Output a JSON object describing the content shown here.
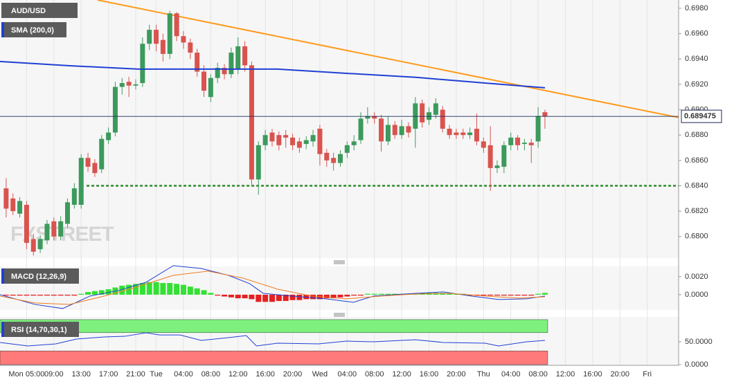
{
  "chart_data": [
    {
      "type": "candlestick",
      "title": "AUD/USD",
      "watermark": "FXSTREET",
      "xlim": [
        -3.9,
        95.6
      ],
      "ylim": [
        0.6783,
        0.69865
      ],
      "xticks": [
        {
          "value": 0,
          "label": "Mon 05:00"
        },
        {
          "value": 4,
          "label": "09:00"
        },
        {
          "value": 8,
          "label": "13:00"
        },
        {
          "value": 12,
          "label": "17:00"
        },
        {
          "value": 16,
          "label": "21:00"
        },
        {
          "value": 19,
          "label": "Tue"
        },
        {
          "value": 23,
          "label": "04:00"
        },
        {
          "value": 27,
          "label": "08:00"
        },
        {
          "value": 31,
          "label": "12:00"
        },
        {
          "value": 35,
          "label": "16:00"
        },
        {
          "value": 39,
          "label": "20:00"
        },
        {
          "value": 43,
          "label": "Wed"
        },
        {
          "value": 47,
          "label": "04:00"
        },
        {
          "value": 51,
          "label": "08:00"
        },
        {
          "value": 55,
          "label": "12:00"
        },
        {
          "value": 59,
          "label": "16:00"
        },
        {
          "value": 63,
          "label": "20:00"
        },
        {
          "value": 67,
          "label": "Thu"
        },
        {
          "value": 71,
          "label": "04:00"
        },
        {
          "value": 75,
          "label": "08:00"
        },
        {
          "value": 79,
          "label": "12:00"
        },
        {
          "value": 83,
          "label": "16:00"
        },
        {
          "value": 87,
          "label": "20:00"
        },
        {
          "value": 91,
          "label": "Fri"
        }
      ],
      "yticks": [
        {
          "value": 0.698,
          "label": "0.6980"
        },
        {
          "value": 0.696,
          "label": "0.6960"
        },
        {
          "value": 0.694,
          "label": "0.6940"
        },
        {
          "value": 0.692,
          "label": "0.6920"
        },
        {
          "value": 0.69,
          "label": "0.6900"
        },
        {
          "value": 0.688,
          "label": "0.6880"
        },
        {
          "value": 0.686,
          "label": "0.6860"
        },
        {
          "value": 0.684,
          "label": "0.6840"
        },
        {
          "value": 0.682,
          "label": "0.6820"
        },
        {
          "value": 0.68,
          "label": "0.6800"
        }
      ],
      "up_color": "#3c9a5c",
      "down_color": "#d9534f",
      "x": [
        -3,
        -2,
        -1,
        0,
        1,
        2,
        3,
        4,
        5,
        6,
        7,
        8,
        9,
        10,
        11,
        12,
        13,
        14,
        15,
        16,
        17,
        18,
        19,
        20,
        21,
        22,
        23,
        24,
        25,
        26,
        27,
        28,
        29,
        30,
        31,
        32,
        33,
        34,
        35,
        36,
        37,
        38,
        39,
        40,
        41,
        42,
        43,
        44,
        45,
        46,
        47,
        48,
        49,
        50,
        51,
        52,
        53,
        54,
        55,
        56,
        57,
        58,
        59,
        60,
        61,
        62,
        63,
        64,
        65,
        66,
        67,
        68,
        69,
        70,
        71,
        72,
        73,
        74,
        75,
        76
      ],
      "open": [
        0.6838,
        0.683,
        0.6818,
        0.6825,
        0.6798,
        0.679,
        0.6797,
        0.6812,
        0.68,
        0.681,
        0.6825,
        0.6825,
        0.6862,
        0.6858,
        0.6853,
        0.6876,
        0.6882,
        0.6918,
        0.6922,
        0.6919,
        0.6921,
        0.6952,
        0.6963,
        0.6955,
        0.6944,
        0.6976,
        0.6958,
        0.6953,
        0.6945,
        0.693,
        0.691,
        0.6925,
        0.6933,
        0.6928,
        0.6932,
        0.695,
        0.6935,
        0.6845,
        0.6872,
        0.6882,
        0.688,
        0.688,
        0.6878,
        0.6875,
        0.6873,
        0.6875,
        0.6885,
        0.6866,
        0.6862,
        0.6858,
        0.6866,
        0.6872,
        0.6876,
        0.6893,
        0.6895,
        0.6893,
        0.6875,
        0.6888,
        0.688,
        0.6887,
        0.6885,
        0.6905,
        0.6892,
        0.6896,
        0.69,
        0.6885,
        0.6882,
        0.6882,
        0.688,
        0.6885,
        0.6875,
        0.6872,
        0.6854,
        0.6855,
        0.6872,
        0.6878,
        0.6873,
        0.6874,
        0.6875,
        0.6898
      ],
      "high": [
        0.6846,
        0.6834,
        0.6831,
        0.6828,
        0.6802,
        0.6801,
        0.6813,
        0.6815,
        0.6816,
        0.683,
        0.6842,
        0.6865,
        0.6866,
        0.6861,
        0.688,
        0.6886,
        0.6922,
        0.6925,
        0.6926,
        0.6924,
        0.6957,
        0.6967,
        0.6967,
        0.696,
        0.6978,
        0.6977,
        0.6962,
        0.6956,
        0.6948,
        0.6935,
        0.6928,
        0.6937,
        0.6936,
        0.6949,
        0.6957,
        0.6954,
        0.6938,
        0.6875,
        0.6884,
        0.6885,
        0.6883,
        0.6884,
        0.6881,
        0.6878,
        0.6879,
        0.6884,
        0.6888,
        0.6869,
        0.6866,
        0.6868,
        0.6875,
        0.688,
        0.6898,
        0.6902,
        0.6898,
        0.6896,
        0.6895,
        0.6891,
        0.6892,
        0.689,
        0.691,
        0.6908,
        0.6902,
        0.6909,
        0.6903,
        0.6888,
        0.6885,
        0.6885,
        0.6886,
        0.6897,
        0.6878,
        0.6887,
        0.686,
        0.6875,
        0.6882,
        0.688,
        0.6877,
        0.6877,
        0.6902,
        0.69
      ],
      "low": [
        0.6815,
        0.6817,
        0.6815,
        0.679,
        0.6785,
        0.6787,
        0.6794,
        0.6797,
        0.6797,
        0.6807,
        0.6822,
        0.6822,
        0.6851,
        0.6847,
        0.685,
        0.6873,
        0.6879,
        0.6912,
        0.691,
        0.6916,
        0.6918,
        0.6947,
        0.6946,
        0.6938,
        0.694,
        0.6954,
        0.6948,
        0.694,
        0.6926,
        0.691,
        0.6906,
        0.6921,
        0.6924,
        0.6925,
        0.6928,
        0.693,
        0.684,
        0.6833,
        0.6868,
        0.6871,
        0.6868,
        0.687,
        0.6868,
        0.6866,
        0.6869,
        0.6871,
        0.6856,
        0.6855,
        0.6852,
        0.6855,
        0.6862,
        0.6868,
        0.6873,
        0.6889,
        0.6889,
        0.6867,
        0.6872,
        0.6877,
        0.6877,
        0.6878,
        0.687,
        0.6886,
        0.6888,
        0.6893,
        0.6882,
        0.6877,
        0.6877,
        0.6877,
        0.6877,
        0.6872,
        0.6866,
        0.6836,
        0.685,
        0.685,
        0.6868,
        0.6868,
        0.6868,
        0.6858,
        0.687,
        0.6885
      ],
      "close": [
        0.6822,
        0.682,
        0.6828,
        0.6795,
        0.6788,
        0.6798,
        0.681,
        0.68,
        0.6812,
        0.6827,
        0.6838,
        0.6862,
        0.6855,
        0.685,
        0.6877,
        0.6882,
        0.6918,
        0.6921,
        0.6919,
        0.692,
        0.6952,
        0.6963,
        0.6952,
        0.6944,
        0.6976,
        0.6958,
        0.6953,
        0.6945,
        0.693,
        0.6915,
        0.6925,
        0.6933,
        0.6928,
        0.6945,
        0.695,
        0.6935,
        0.6845,
        0.6872,
        0.688,
        0.6875,
        0.6872,
        0.6878,
        0.6872,
        0.687,
        0.6876,
        0.688,
        0.6865,
        0.686,
        0.6858,
        0.6865,
        0.6872,
        0.6875,
        0.6893,
        0.6895,
        0.6893,
        0.6875,
        0.6888,
        0.688,
        0.6887,
        0.6882,
        0.6905,
        0.689,
        0.6898,
        0.6905,
        0.6885,
        0.688,
        0.688,
        0.688,
        0.6882,
        0.6875,
        0.687,
        0.6854,
        0.6856,
        0.6872,
        0.6878,
        0.6872,
        0.6874,
        0.6872,
        0.6895,
        0.689475
      ],
      "sma": {
        "name": "SMA (200,0)",
        "color": "#1f3fd4",
        "x": [
          -3.9,
          6.3,
          16.4,
          26.6,
          36.8,
          46.9,
          57.1,
          67.2,
          76
        ],
        "values": [
          0.6938,
          0.69347,
          0.6932,
          0.6932,
          0.6932,
          0.69287,
          0.69255,
          0.6921,
          0.69173
        ]
      },
      "lines": [
        {
          "color": "#ff9a1a",
          "dashed": false,
          "x": [
            10.4,
            95.6
          ],
          "values": [
            0.69865,
            0.68938
          ]
        },
        {
          "color": "#2a8a2a",
          "dashed": true,
          "x": [
            8.8,
            95.6
          ],
          "values": [
            0.684,
            0.684
          ]
        }
      ],
      "last_price": {
        "value": 0.689475,
        "label": "0.689475",
        "color": "#1a2a5a"
      }
    },
    {
      "type": "macd",
      "title": "MACD (12,26,9)",
      "ylim": [
        -0.0017,
        0.00315
      ],
      "yticks": [
        {
          "value": 0.002,
          "label": "0.0020"
        },
        {
          "value": 0,
          "label": "0.0000"
        }
      ],
      "up_color": "#33e033",
      "down_color": "#e52020",
      "x": [
        -3,
        -2,
        -1,
        0,
        1,
        2,
        3,
        4,
        5,
        6,
        7,
        8,
        9,
        10,
        11,
        12,
        13,
        14,
        15,
        16,
        17,
        18,
        19,
        20,
        21,
        22,
        23,
        24,
        25,
        26,
        27,
        28,
        29,
        30,
        31,
        32,
        33,
        34,
        35,
        36,
        37,
        38,
        39,
        40,
        41,
        42,
        43,
        44,
        45,
        46,
        47,
        48,
        49,
        50,
        51,
        52,
        53,
        54,
        55,
        56,
        57,
        58,
        59,
        60,
        61,
        62,
        63,
        64,
        65,
        66,
        67,
        68,
        69,
        70,
        71,
        72,
        73,
        74,
        75,
        76
      ],
      "histogram": [
        -0.0001,
        -0.0001,
        -0.0001,
        -0.0001,
        -0.0001,
        -0.0001,
        -0.0001,
        -0.0001,
        -0.0001,
        -0.0001,
        -0.0001,
        0.0001,
        0.0003,
        0.0004,
        0.0005,
        0.0006,
        0.0008,
        0.001,
        0.0011,
        0.0012,
        0.0013,
        0.0014,
        0.0014,
        0.0013,
        0.0013,
        0.0012,
        0.0011,
        0.0009,
        0.0007,
        0.0005,
        0.0002,
        -0.0001,
        -0.0002,
        -0.0003,
        -0.0004,
        -0.0004,
        -0.0005,
        -0.0008,
        -0.0008,
        -0.0008,
        -0.0007,
        -0.0007,
        -0.0006,
        -0.0006,
        -0.0005,
        -0.0005,
        -0.0005,
        -0.0004,
        -0.0004,
        -0.0003,
        -0.0002,
        -0.0001,
        -0.0001,
        0.0001,
        0.0001,
        0.0001,
        0.0001,
        0.0001,
        0.0001,
        0.0001,
        0.0001,
        0.0002,
        0.0002,
        0.0002,
        0.0002,
        0.0001,
        0.0001,
        0.0001,
        -0.0001,
        -0.0001,
        -0.0001,
        -0.0001,
        -0.0001,
        -0.0001,
        -0.0001,
        -0.0001,
        -0.0001,
        -0.0001,
        0.0001,
        0.0002
      ],
      "macd": {
        "color": "#1f3fd4",
        "x": [
          -3.9,
          1.2,
          5.3,
          9.3,
          13.4,
          17.5,
          21.5,
          25.6,
          29.6,
          32.7,
          34.7,
          38.8,
          43.9,
          47.9,
          50.9,
          57.0,
          61.1,
          65.2,
          69.2,
          73.3,
          76
        ],
        "values": [
          0,
          -0.00108,
          -0.00154,
          -0.00015,
          0.00046,
          0.00138,
          0.00323,
          0.00292,
          0.00215,
          0.00123,
          0.00015,
          -0.00015,
          -0.00046,
          -0.00085,
          -0.00015,
          0.00015,
          0.00031,
          -0.00015,
          -0.00054,
          -0.00046,
          -0.00015
        ]
      },
      "signal": {
        "color": "#f07a20",
        "x": [
          -3.9,
          1.2,
          6.3,
          11.4,
          16.4,
          21.5,
          26.6,
          31.7,
          36.8,
          41.8,
          46.9,
          52.0,
          57.1,
          62.1,
          67.2,
          72.3,
          76
        ],
        "values": [
          -0.00015,
          -0.00092,
          -0.00108,
          -0.00015,
          0.00092,
          0.00215,
          0.00262,
          0.00185,
          0.00062,
          -0.00015,
          -0.00046,
          -0.00015,
          8e-05,
          0.00015,
          -0.00015,
          -0.00038,
          -0.00023
        ]
      }
    },
    {
      "type": "rsi",
      "title": "RSI (14,70,30,1)",
      "ylim": [
        0,
        104.5
      ],
      "yticks": [
        {
          "value": 50,
          "label": "50.0000"
        },
        {
          "value": 0,
          "label": "0.0000"
        }
      ],
      "bands": [
        {
          "from": 70,
          "to": 98.5,
          "color": "#7ef07e"
        },
        {
          "from": 0,
          "to": 30,
          "color": "#ff7b7b"
        }
      ],
      "line": {
        "color": "#1f3fd4",
        "x": [
          -3.9,
          0.2,
          4.3,
          7.3,
          11.4,
          14.4,
          17.5,
          19.5,
          22.5,
          25.6,
          29.6,
          32.2,
          33.7,
          36.8,
          42.8,
          46.9,
          50.9,
          57.0,
          61.1,
          67.2,
          69.2,
          73.3,
          76
        ],
        "values": [
          48.5,
          40.9,
          45.5,
          56,
          60.6,
          62,
          69.7,
          65,
          65,
          53,
          59,
          63.6,
          40.9,
          47,
          45.5,
          51.5,
          50,
          54.5,
          48.5,
          47,
          40.9,
          50,
          53
        ]
      }
    }
  ]
}
